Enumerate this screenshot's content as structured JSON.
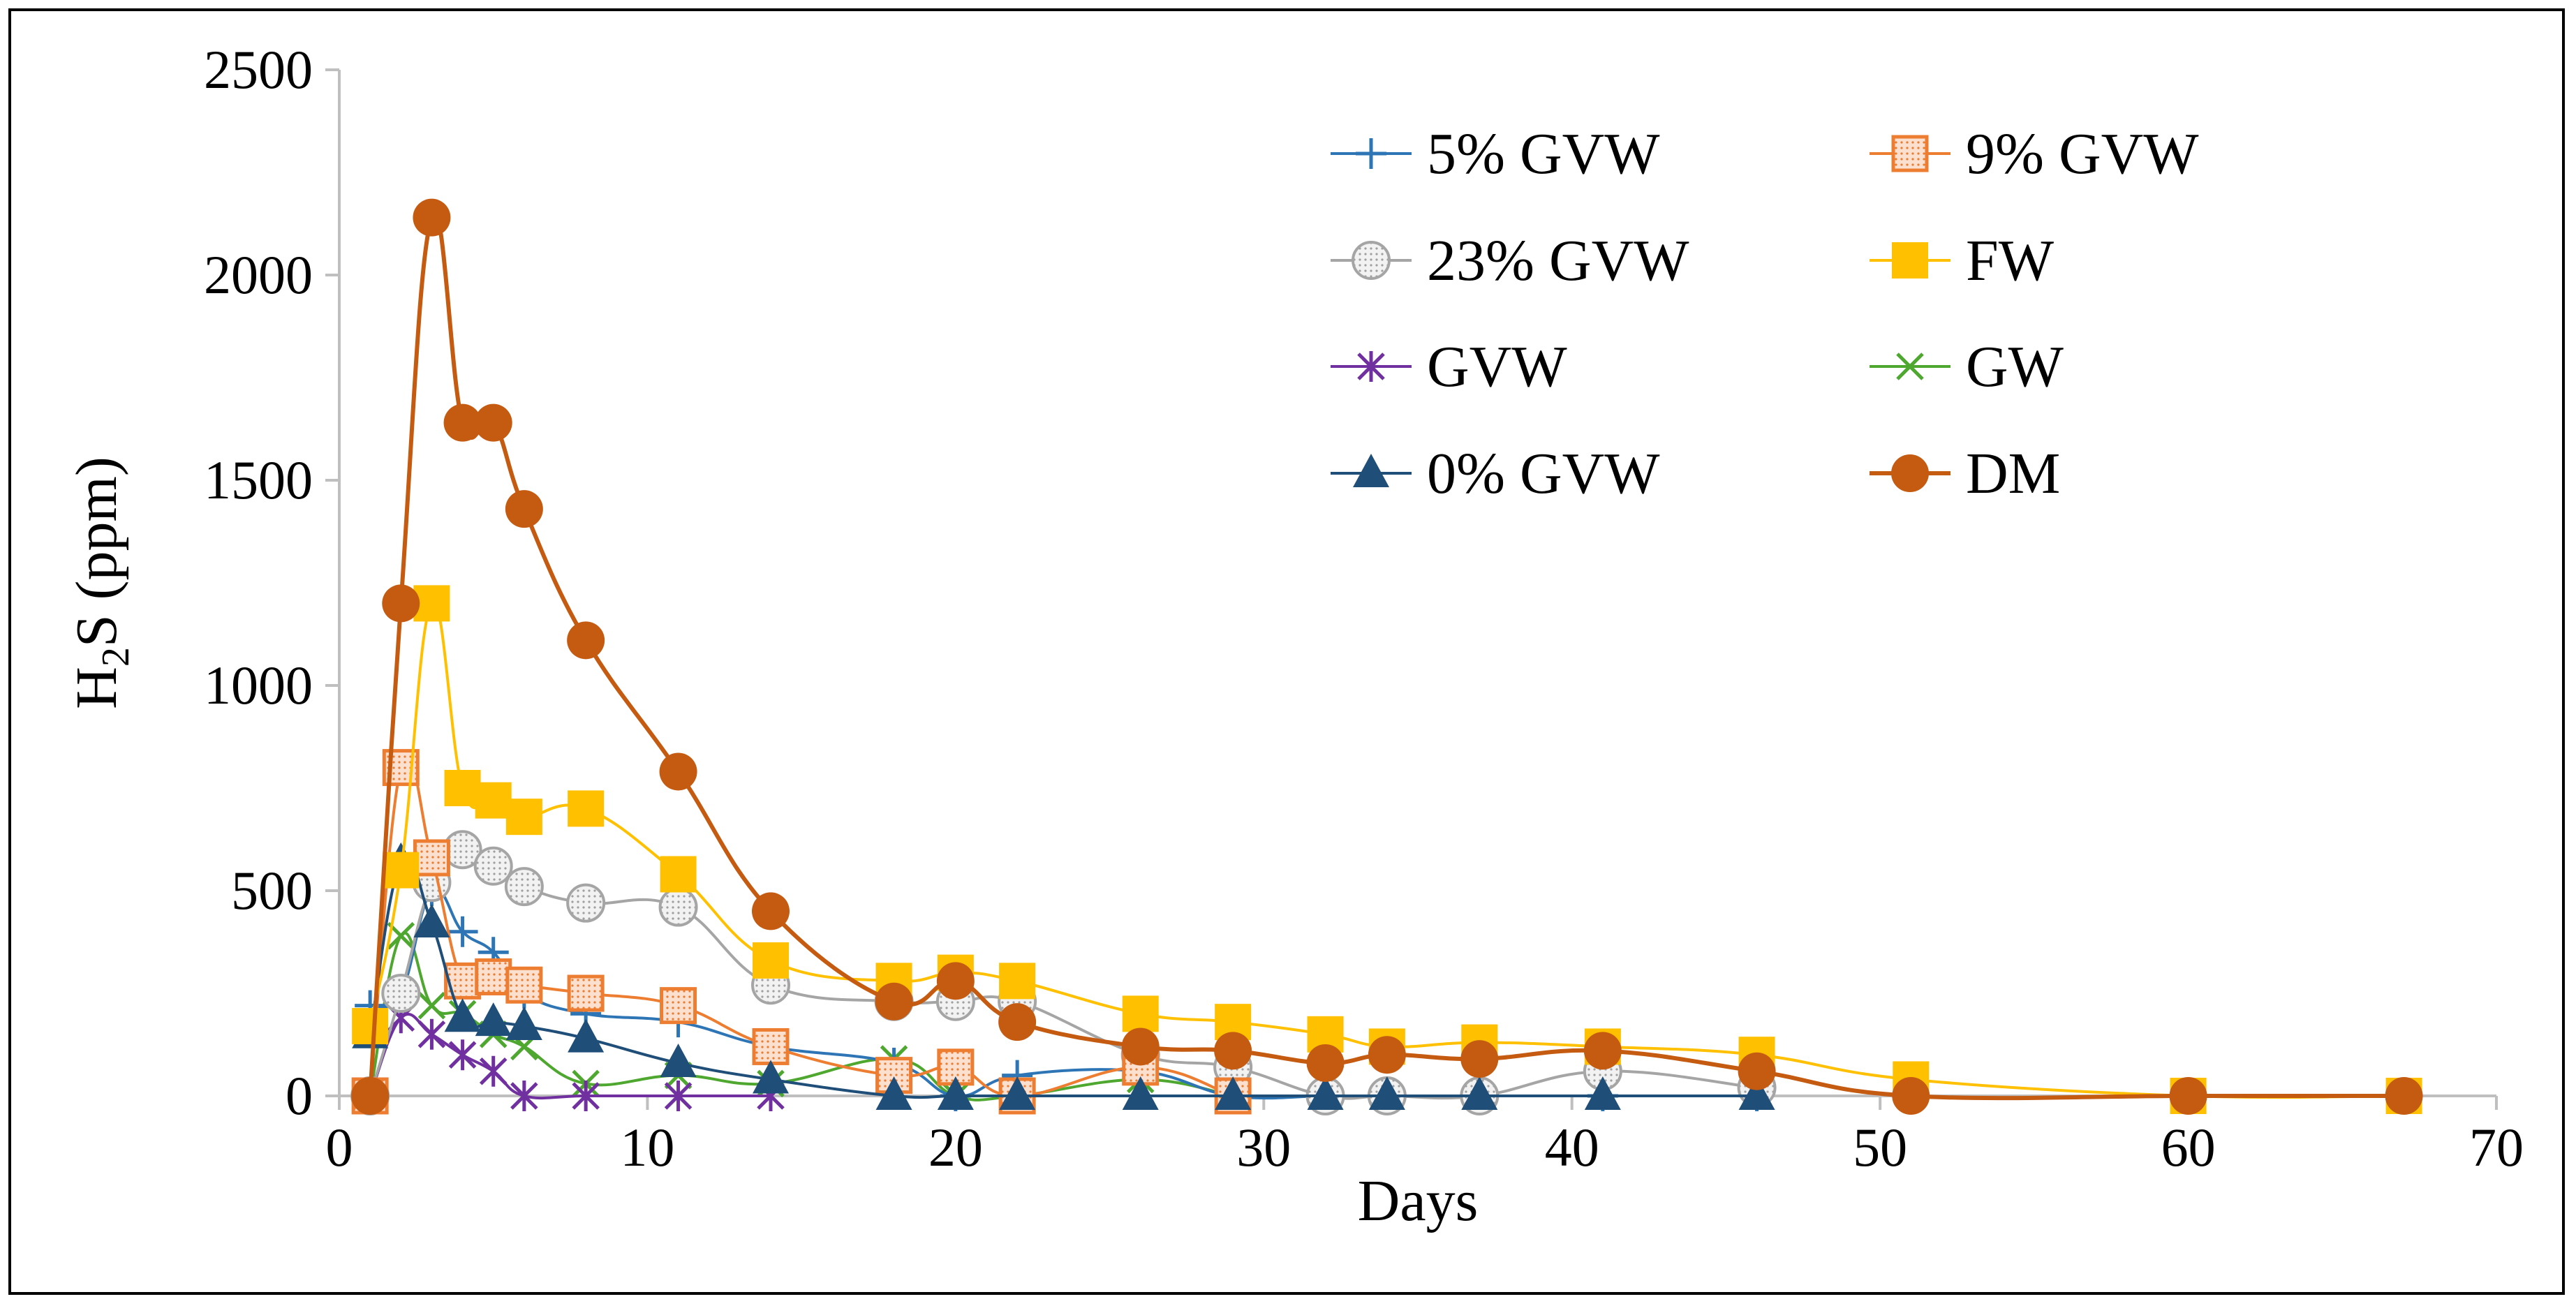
{
  "chart_data": {
    "type": "line",
    "title": "",
    "xlabel": "Days",
    "ylabel_main": "H",
    "ylabel_sub": "2",
    "ylabel_rest": "S (ppm)",
    "xlim": [
      0,
      70
    ],
    "ylim": [
      0,
      2500
    ],
    "x_ticks": [
      0,
      10,
      20,
      30,
      40,
      50,
      60,
      70
    ],
    "y_ticks": [
      0,
      500,
      1000,
      1500,
      2000,
      2500
    ],
    "grid": false,
    "legend_position": "top-right",
    "series": [
      {
        "name": "5% GVW",
        "color": "#2E75B6",
        "marker": "plus",
        "x": [
          1,
          2,
          3,
          4,
          5,
          6,
          8,
          11,
          14,
          18,
          20,
          22,
          26,
          29,
          32,
          34,
          37,
          41,
          46
        ],
        "y": [
          220,
          250,
          500,
          400,
          350,
          250,
          200,
          180,
          120,
          80,
          0,
          50,
          60,
          0,
          0,
          0,
          0,
          0,
          0
        ]
      },
      {
        "name": "9% GVW",
        "color": "#ED7D31",
        "marker": "square-dotted",
        "x": [
          1,
          2,
          3,
          4,
          5,
          6,
          8,
          11,
          14,
          18,
          20,
          22,
          26,
          29
        ],
        "y": [
          0,
          800,
          580,
          280,
          290,
          270,
          250,
          220,
          120,
          50,
          70,
          0,
          70,
          0
        ]
      },
      {
        "name": "23% GVW",
        "color": "#A5A5A5",
        "marker": "circle-dotted",
        "x": [
          1,
          2,
          3,
          4,
          5,
          6,
          8,
          11,
          14,
          18,
          20,
          22,
          26,
          29,
          32,
          34,
          37,
          41,
          46
        ],
        "y": [
          0,
          250,
          520,
          600,
          560,
          510,
          470,
          460,
          270,
          230,
          230,
          230,
          100,
          70,
          0,
          0,
          0,
          60,
          20
        ]
      },
      {
        "name": "FW",
        "color": "#FFC000",
        "marker": "square",
        "x": [
          1,
          2,
          3,
          4,
          5,
          6,
          8,
          11,
          14,
          18,
          20,
          22,
          26,
          29,
          32,
          34,
          37,
          41,
          46,
          51,
          60,
          67
        ],
        "y": [
          170,
          550,
          1200,
          750,
          720,
          680,
          700,
          540,
          330,
          280,
          300,
          280,
          200,
          180,
          150,
          120,
          130,
          120,
          100,
          40,
          0,
          0
        ]
      },
      {
        "name": "GVW",
        "color": "#7030A0",
        "marker": "star",
        "x": [
          1,
          2,
          3,
          4,
          5,
          6,
          8,
          11,
          14
        ],
        "y": [
          0,
          190,
          150,
          100,
          60,
          0,
          0,
          0,
          0
        ]
      },
      {
        "name": "GW",
        "color": "#4EA72E",
        "marker": "x",
        "x": [
          1,
          2,
          3,
          4,
          5,
          6,
          8,
          11,
          14,
          18,
          20,
          22,
          26,
          29
        ],
        "y": [
          0,
          390,
          220,
          200,
          150,
          120,
          30,
          50,
          30,
          90,
          0,
          0,
          40,
          0
        ]
      },
      {
        "name": "0% GVW",
        "color": "#1F4E79",
        "marker": "triangle",
        "x": [
          1,
          2,
          3,
          4,
          5,
          6,
          8,
          11,
          14,
          18,
          20,
          22,
          26,
          29,
          32,
          34,
          37,
          41,
          46
        ],
        "y": [
          150,
          570,
          420,
          190,
          180,
          170,
          140,
          80,
          40,
          0,
          0,
          0,
          0,
          0,
          0,
          0,
          0,
          0,
          0
        ]
      },
      {
        "name": "DM",
        "color": "#C55A11",
        "marker": "circle",
        "x": [
          1,
          2,
          3,
          4,
          5,
          6,
          8,
          11,
          14,
          18,
          20,
          22,
          26,
          29,
          32,
          34,
          37,
          41,
          46,
          51,
          60,
          67
        ],
        "y": [
          0,
          1200,
          2140,
          1640,
          1640,
          1430,
          1110,
          790,
          450,
          230,
          280,
          180,
          120,
          110,
          80,
          100,
          90,
          110,
          60,
          0,
          0,
          0
        ]
      }
    ]
  }
}
